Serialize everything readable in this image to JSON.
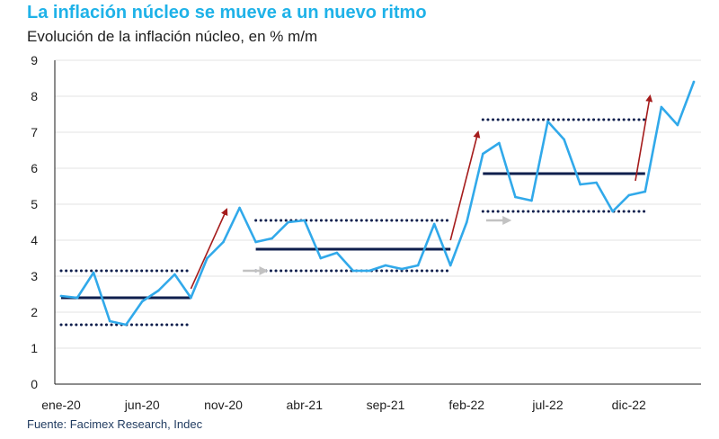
{
  "title": "La inflación núcleo se mueve a un nuevo ritmo",
  "subtitle": "Evolución de la inflación núcleo, en % m/m",
  "source": "Fuente: Facimex Research, Indec",
  "colors": {
    "title": "#1fb2e8",
    "series": "#31a9ea",
    "mean": "#0f1f4d",
    "band": "#0f1f4d",
    "arrow_up": "#a51c1c",
    "arrow_flat": "#c2c2c2",
    "grid": "#e3e3e3"
  },
  "chart_data": {
    "type": "line",
    "title": "La inflación núcleo se mueve a un nuevo ritmo",
    "ylabel": "en % m/m",
    "ylim": [
      0,
      9
    ],
    "yticks": [
      0,
      1,
      2,
      3,
      4,
      5,
      6,
      7,
      8,
      9
    ],
    "grid": true,
    "x_tick_labels": [
      {
        "index": 0,
        "label": "ene-20"
      },
      {
        "index": 5,
        "label": "jun-20"
      },
      {
        "index": 10,
        "label": "nov-20"
      },
      {
        "index": 15,
        "label": "abr-21"
      },
      {
        "index": 20,
        "label": "sep-21"
      },
      {
        "index": 25,
        "label": "feb-22"
      },
      {
        "index": 30,
        "label": "jul-22"
      },
      {
        "index": 35,
        "label": "dic-22"
      }
    ],
    "series": [
      {
        "name": "Inflación núcleo",
        "values": [
          2.45,
          2.4,
          3.1,
          1.75,
          1.65,
          2.3,
          2.6,
          3.05,
          2.4,
          3.5,
          3.95,
          4.9,
          3.95,
          4.05,
          4.5,
          4.55,
          3.5,
          3.65,
          3.15,
          3.15,
          3.3,
          3.2,
          3.3,
          4.45,
          3.3,
          4.5,
          6.4,
          6.7,
          5.2,
          5.1,
          7.3,
          6.8,
          5.55,
          5.6,
          4.8,
          5.25,
          5.35,
          7.7,
          7.2,
          8.4
        ]
      }
    ],
    "regimes": [
      {
        "start": 0,
        "end": 8,
        "mean": 2.4,
        "upper": 3.15,
        "lower": 1.65
      },
      {
        "start": 12,
        "end": 24,
        "mean": 3.75,
        "upper": 4.55,
        "lower": 3.15
      },
      {
        "start": 26,
        "end": 36,
        "mean": 5.85,
        "upper": 7.35,
        "lower": 4.8
      }
    ],
    "arrows": [
      {
        "kind": "up",
        "from": [
          8,
          2.65
        ],
        "to": [
          10.2,
          4.85
        ]
      },
      {
        "kind": "up",
        "from": [
          24,
          4.0
        ],
        "to": [
          25.7,
          7.0
        ]
      },
      {
        "kind": "up",
        "from": [
          35.4,
          5.65
        ],
        "to": [
          36.3,
          8.0
        ]
      },
      {
        "kind": "flat",
        "from": [
          11.2,
          3.15
        ],
        "to": [
          12.6,
          3.15
        ]
      },
      {
        "kind": "flat",
        "from": [
          26.2,
          4.55
        ],
        "to": [
          27.6,
          4.55
        ]
      }
    ]
  }
}
